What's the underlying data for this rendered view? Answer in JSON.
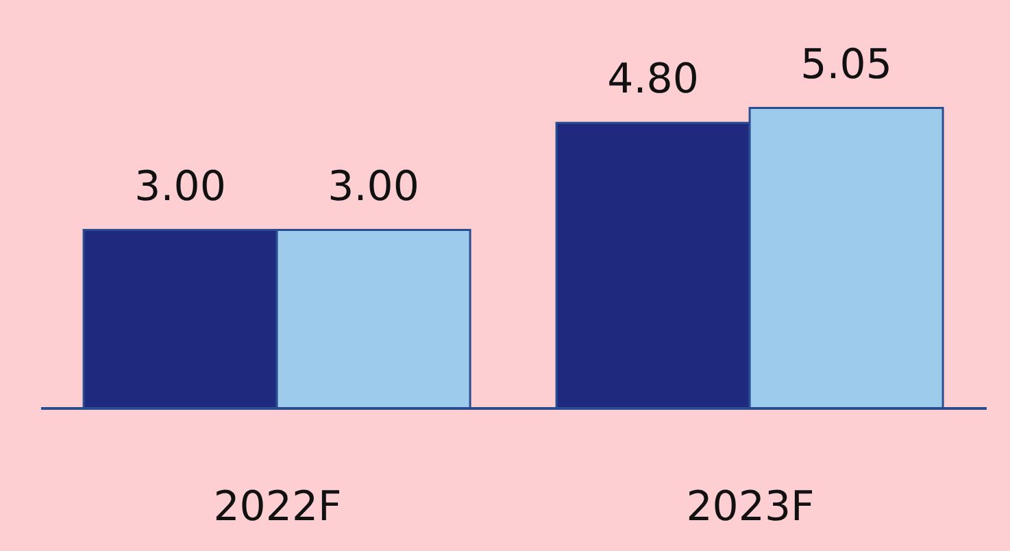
{
  "chart_data": {
    "type": "bar",
    "categories": [
      "2022F",
      "2023F"
    ],
    "series": [
      {
        "color": "#1f2a7e",
        "values": [
          3.0,
          4.8
        ],
        "value_labels": [
          "3.00",
          "4.80"
        ]
      },
      {
        "color": "#9ccbeb",
        "values": [
          3.0,
          5.05
        ],
        "value_labels": [
          "3.00",
          "5.05"
        ]
      }
    ]
  }
}
